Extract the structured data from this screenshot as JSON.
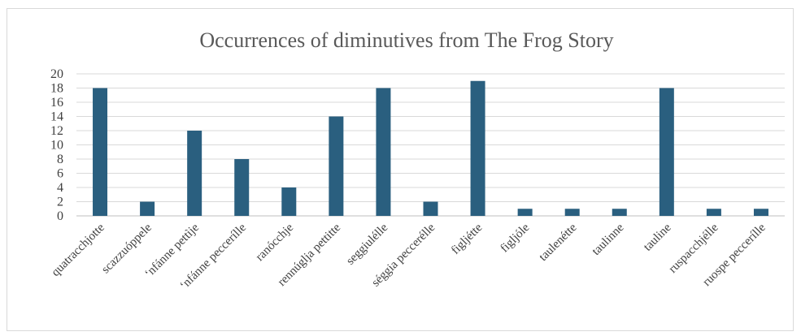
{
  "chart_data": {
    "type": "bar",
    "title": "Occurrences of diminutives from The Frog Story",
    "xlabel": "",
    "ylabel": "",
    "ylim": [
      0,
      20
    ],
    "yticks": [
      0,
      2,
      4,
      6,
      8,
      10,
      12,
      14,
      16,
      18,
      20
    ],
    "grid": true,
    "legend": "none",
    "bar_color": "#2a5f7f",
    "categories": [
      "quatracchjotte",
      "scazzuóppele",
      "‘nfánne pettìje",
      "‘nfánne peccerílle",
      "ranócchje",
      "rennúglja pettitte",
      "seggiulélle",
      "séggia peccerélle",
      "figljétte",
      "figljóle",
      "taulenétte",
      "taulinne",
      "tauline",
      "ruspacchjélle",
      "ruospe peccerílle"
    ],
    "values": [
      18,
      2,
      12,
      8,
      4,
      14,
      18,
      2,
      19,
      1,
      1,
      1,
      18,
      1,
      1
    ]
  }
}
